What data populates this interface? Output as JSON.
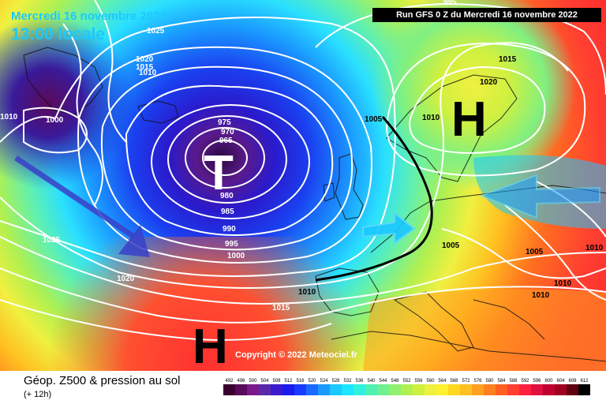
{
  "header": {
    "date_label": "Mercredi 16 novembre 2022",
    "local_time": "13:00 locale",
    "run_info": "Run GFS 0 Z du Mercredi 16 novembre 2022"
  },
  "footer": {
    "title": "Géop. Z500 & pression au sol",
    "offset": "(+ 12h)",
    "copyright": "Copyright © 2022 Meteociel.fr"
  },
  "pressure_centers": [
    {
      "letter": "T",
      "kind": "low",
      "color": "#ffffff"
    },
    {
      "letter": "H",
      "kind": "high",
      "color": "#000000"
    },
    {
      "letter": "H",
      "kind": "high",
      "color": "#000000"
    }
  ],
  "isobar_labels": [
    "1025",
    "1020",
    "1015",
    "1010",
    "1010",
    "1000",
    "975",
    "970",
    "965",
    "980",
    "985",
    "990",
    "995",
    "1000",
    "1005",
    "1010",
    "1015",
    "1020",
    "1015",
    "1025",
    "1020",
    "1015",
    "1010",
    "1005",
    "1005",
    "1010",
    "1010",
    "1010",
    "995"
  ],
  "legend": {
    "values": [
      "492",
      "496",
      "500",
      "504",
      "508",
      "512",
      "516",
      "520",
      "524",
      "528",
      "532",
      "536",
      "540",
      "544",
      "548",
      "552",
      "556",
      "560",
      "564",
      "568",
      "572",
      "576",
      "580",
      "584",
      "588",
      "592",
      "596",
      "600",
      "604",
      "608",
      "612"
    ],
    "colors": [
      "#3a0030",
      "#5a0a5a",
      "#7a1a8a",
      "#5a2aaa",
      "#3a1acc",
      "#1a1aee",
      "#1a3aff",
      "#1a6aff",
      "#1a9aff",
      "#1ac8ff",
      "#1ae6ff",
      "#30f0e0",
      "#50f0b0",
      "#70f090",
      "#90f070",
      "#b0f050",
      "#d0f040",
      "#f0f040",
      "#fff030",
      "#ffd820",
      "#ffc020",
      "#ffa020",
      "#ff8020",
      "#ff6020",
      "#ff4030",
      "#ff2040",
      "#e01040",
      "#c00030",
      "#a00020",
      "#600010",
      "#000000"
    ]
  }
}
